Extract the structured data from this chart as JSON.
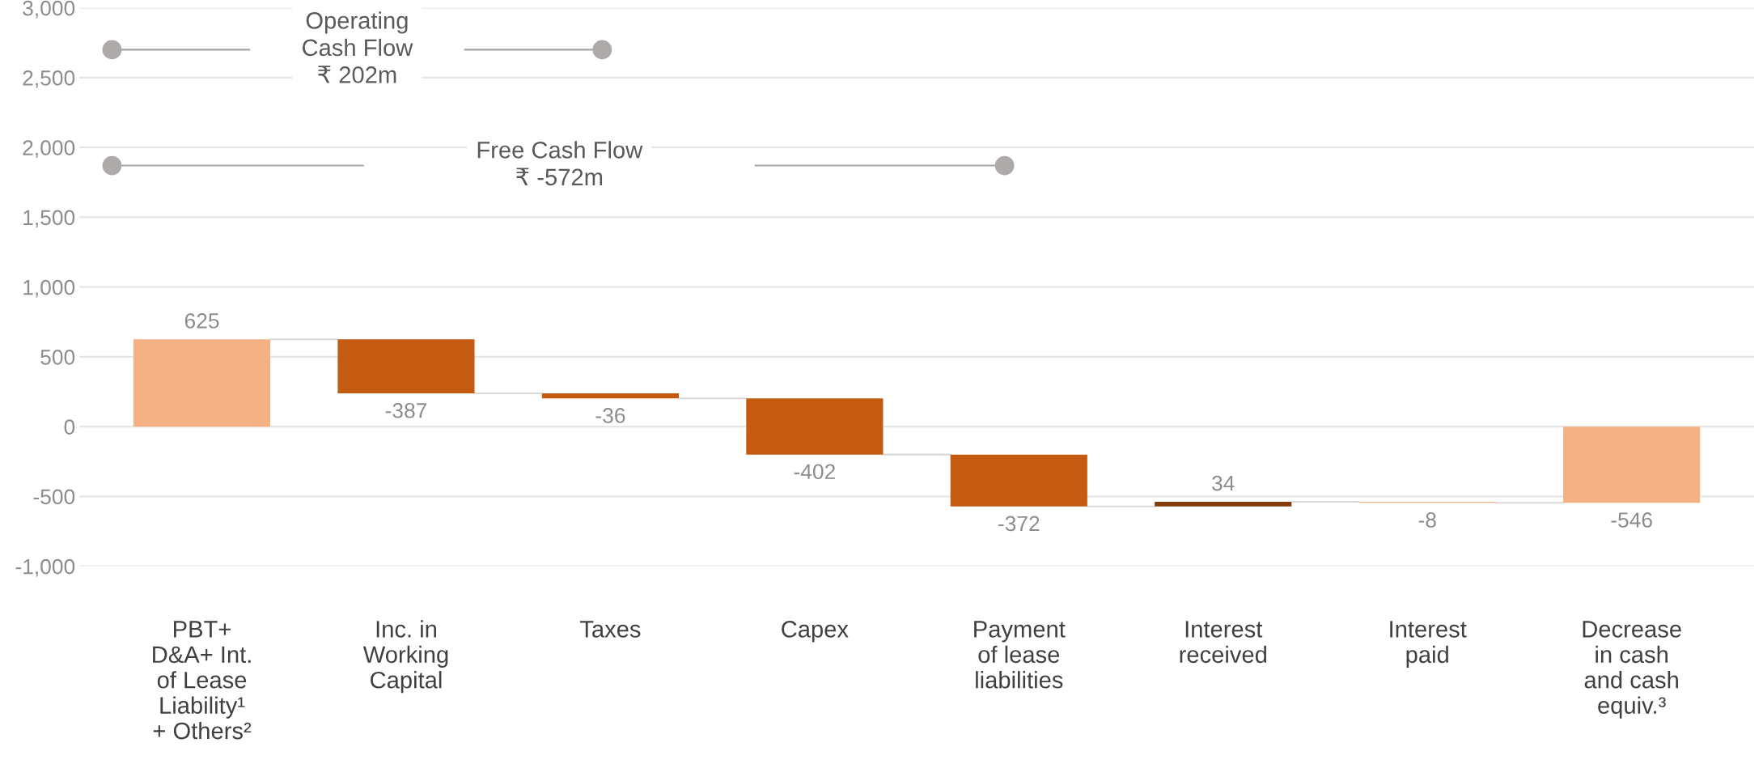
{
  "chart_data": {
    "type": "bar",
    "categories": [
      "PBT+\nD&A+ Int.\nof Lease\nLiability¹\n+ Others²",
      "Inc. in\nWorking\nCapital",
      "Taxes",
      "Capex",
      "Payment\nof lease\nliabilities",
      "Interest\nreceived",
      "Interest\npaid",
      "Decrease\nin cash\nand cash\nequiv.³"
    ],
    "values": [
      625,
      -387,
      -36,
      -402,
      -372,
      34,
      -8,
      -546
    ],
    "base": [
      0,
      625,
      238,
      202,
      -200,
      -572,
      -538,
      0
    ],
    "colors": [
      "#f4b183",
      "#c55a11",
      "#c55a11",
      "#c55a11",
      "#c55a11",
      "#843c0c",
      "#f4b183",
      "#f4b183"
    ],
    "data_labels": true,
    "ylim": [
      -1000,
      3000
    ],
    "yticks": [
      {
        "value": -1000,
        "label": "-1,000"
      },
      {
        "value": -500,
        "label": "-500"
      },
      0,
      500,
      {
        "value": 1000,
        "label": "1,000"
      },
      {
        "value": 1500,
        "label": "1,500"
      },
      {
        "value": 2000,
        "label": "2,000"
      },
      {
        "value": 2500,
        "label": "2,500"
      },
      {
        "value": 3000,
        "label": "3,000"
      }
    ],
    "grid": "y",
    "annotations": [
      "Operating\nCash Flow\n₹ 202m",
      "Free Cash Flow\n₹ -572m"
    ]
  }
}
